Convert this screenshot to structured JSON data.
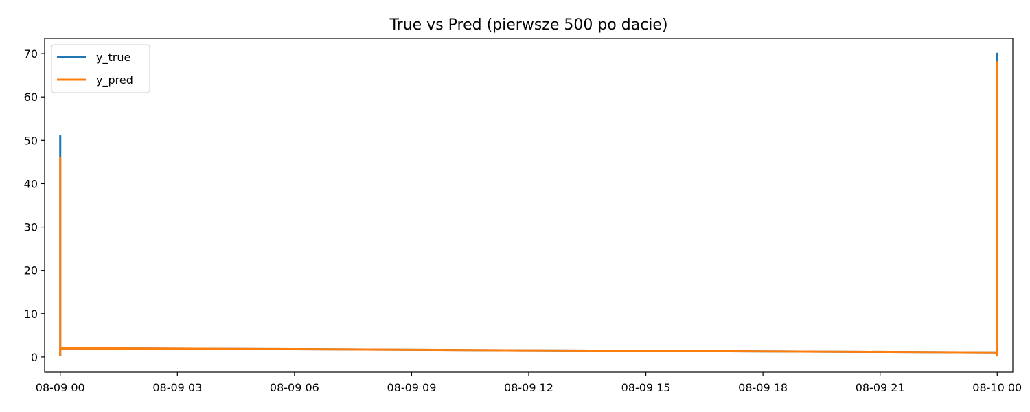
{
  "chart_data": {
    "type": "line",
    "title": "True vs Pred (pierwsze 500 po dacie)",
    "xlabel": "",
    "ylabel": "",
    "x_axis_type": "datetime",
    "xlim": [
      "2024-08-08T23:36:00",
      "2024-08-10T00:24:00"
    ],
    "ylim": [
      -3.5,
      73.5
    ],
    "x_ticks": [
      {
        "value": "2024-08-09T00:00:00",
        "label": "08-09 00"
      },
      {
        "value": "2024-08-09T03:00:00",
        "label": "08-09 03"
      },
      {
        "value": "2024-08-09T06:00:00",
        "label": "08-09 06"
      },
      {
        "value": "2024-08-09T09:00:00",
        "label": "08-09 09"
      },
      {
        "value": "2024-08-09T12:00:00",
        "label": "08-09 12"
      },
      {
        "value": "2024-08-09T15:00:00",
        "label": "08-09 15"
      },
      {
        "value": "2024-08-09T18:00:00",
        "label": "08-09 18"
      },
      {
        "value": "2024-08-09T21:00:00",
        "label": "08-09 21"
      },
      {
        "value": "2024-08-10T00:00:00",
        "label": "08-10 00"
      }
    ],
    "y_ticks": [
      {
        "value": 0,
        "label": "0"
      },
      {
        "value": 10,
        "label": "10"
      },
      {
        "value": 20,
        "label": "20"
      },
      {
        "value": 30,
        "label": "30"
      },
      {
        "value": 40,
        "label": "40"
      },
      {
        "value": 50,
        "label": "50"
      },
      {
        "value": 60,
        "label": "60"
      },
      {
        "value": 70,
        "label": "70"
      }
    ],
    "grid": false,
    "legend": {
      "placement": "top-left"
    },
    "series": [
      {
        "name": "y_true",
        "color": "#1f77b4",
        "points": [
          [
            "2024-08-09T00:00:00",
            0.2
          ],
          [
            "2024-08-09T00:00:00",
            51.0
          ],
          [
            "2024-08-09T00:00:00",
            2.0
          ],
          [
            "2024-08-09T06:00:00",
            1.8
          ],
          [
            "2024-08-09T12:00:00",
            1.55
          ],
          [
            "2024-08-09T18:00:00",
            1.3
          ],
          [
            "2024-08-10T00:00:00",
            1.05
          ],
          [
            "2024-08-10T00:00:00",
            70.0
          ],
          [
            "2024-08-10T00:00:00",
            0.2
          ]
        ]
      },
      {
        "name": "y_pred",
        "color": "#ff7f0e",
        "points": [
          [
            "2024-08-09T00:00:00",
            0.3
          ],
          [
            "2024-08-09T00:00:00",
            46.0
          ],
          [
            "2024-08-09T00:00:00",
            2.0
          ],
          [
            "2024-08-09T06:00:00",
            1.8
          ],
          [
            "2024-08-09T12:00:00",
            1.55
          ],
          [
            "2024-08-09T18:00:00",
            1.3
          ],
          [
            "2024-08-10T00:00:00",
            1.05
          ],
          [
            "2024-08-10T00:00:00",
            68.0
          ],
          [
            "2024-08-10T00:00:00",
            0.1
          ]
        ]
      }
    ]
  }
}
